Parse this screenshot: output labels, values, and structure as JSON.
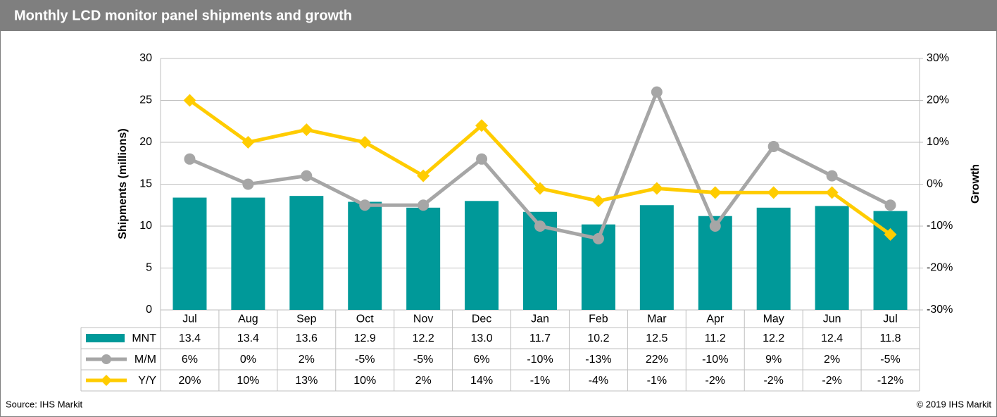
{
  "chart_data": {
    "type": "bar",
    "title": "Monthly LCD monitor panel shipments and growth",
    "ylabel": "Shipments (millions)",
    "y2label": "Growth",
    "source": "Source: IHS Markit",
    "copyright": "© 2019 IHS Markit",
    "categories": [
      "Jul",
      "Aug",
      "Sep",
      "Oct",
      "Nov",
      "Dec",
      "Jan",
      "Feb",
      "Mar",
      "Apr",
      "May",
      "Jun",
      "Jul"
    ],
    "ylim": [
      0,
      30
    ],
    "yticks": [
      0,
      5,
      10,
      15,
      20,
      25,
      30
    ],
    "y2lim": [
      -30,
      30
    ],
    "y2ticks": [
      {
        "value": -30,
        "label": "-30%"
      },
      {
        "value": -20,
        "label": "-20%"
      },
      {
        "value": -10,
        "label": "-10%"
      },
      {
        "value": 0,
        "label": "0%"
      },
      {
        "value": 10,
        "label": "10%"
      },
      {
        "value": 20,
        "label": "20%"
      },
      {
        "value": 30,
        "label": "30%"
      }
    ],
    "grid": true,
    "series": [
      {
        "name": "MNT",
        "type": "bar",
        "color": "#009999",
        "values": [
          13.4,
          13.4,
          13.6,
          12.9,
          12.2,
          13.0,
          11.7,
          10.2,
          12.5,
          11.2,
          12.2,
          12.4,
          11.8
        ],
        "value_labels": [
          "13.4",
          "13.4",
          "13.6",
          "12.9",
          "12.2",
          "13.0",
          "11.7",
          "10.2",
          "12.5",
          "11.2",
          "12.2",
          "12.4",
          "11.8"
        ]
      },
      {
        "name": "M/M",
        "type": "line",
        "axis": "y2",
        "color": "#a6a6a6",
        "marker": "circle",
        "values": [
          6,
          0,
          2,
          -5,
          -5,
          6,
          -10,
          -13,
          22,
          -10,
          9,
          2,
          -5
        ],
        "value_labels": [
          "6%",
          "0%",
          "2%",
          "-5%",
          "-5%",
          "6%",
          "-10%",
          "-13%",
          "22%",
          "-10%",
          "9%",
          "2%",
          "-5%"
        ]
      },
      {
        "name": "Y/Y",
        "type": "line",
        "axis": "y2",
        "color": "#ffcc00",
        "marker": "diamond",
        "values": [
          20,
          10,
          13,
          10,
          2,
          14,
          -1,
          -4,
          -1,
          -2,
          -2,
          -2,
          -12
        ],
        "value_labels": [
          "20%",
          "10%",
          "13%",
          "10%",
          "2%",
          "14%",
          "-1%",
          "-4%",
          "-1%",
          "-2%",
          "-2%",
          "-2%",
          "-12%"
        ]
      }
    ]
  }
}
